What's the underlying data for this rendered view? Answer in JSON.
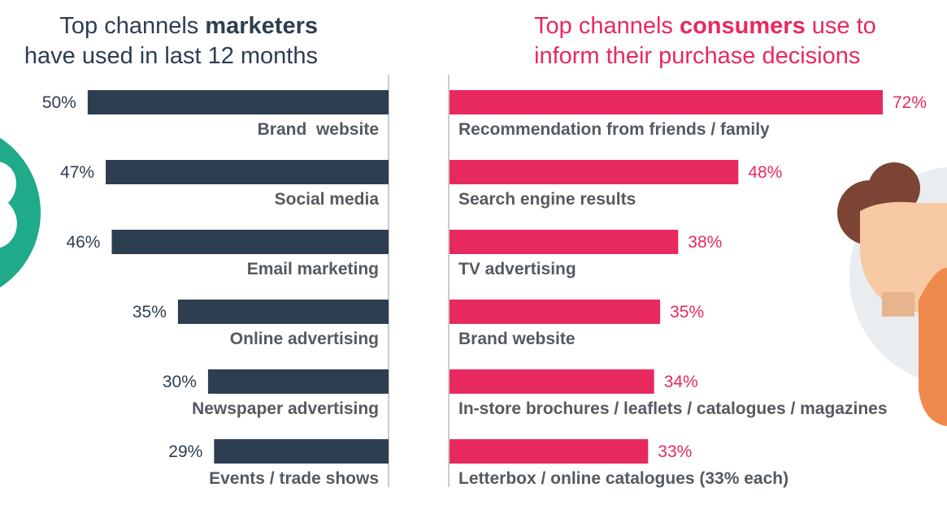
{
  "left_title": {
    "line1_pre": "Top channels ",
    "line1_bold": "marketers",
    "line2": "have used in last 12 months"
  },
  "right_title": {
    "line1_pre": "Top channels ",
    "line1_bold": "consumers",
    "line1_post": " use to",
    "line2": "inform their purchase decisions"
  },
  "colors": {
    "marketers": "#2d3e50",
    "consumers": "#e8295f",
    "text": "#555a60",
    "axis": "#9a9a9a"
  },
  "chart_data": [
    {
      "type": "bar",
      "orientation": "horizontal",
      "title": "Top channels marketers have used in last 12 months",
      "categories": [
        "Brand  website",
        "Social media",
        "Email marketing",
        "Online advertising",
        "Newspaper advertising",
        "Events / trade shows"
      ],
      "values": [
        50,
        47,
        46,
        35,
        30,
        29
      ],
      "value_labels": [
        "50%",
        "47%",
        "46%",
        "35%",
        "30%",
        "29%"
      ],
      "unit": "%",
      "xlim": [
        0,
        72
      ],
      "direction": "right-to-left",
      "grid": false
    },
    {
      "type": "bar",
      "orientation": "horizontal",
      "title": "Top channels consumers use to inform their purchase decisions",
      "categories": [
        "Recommendation from friends / family",
        "Search engine results",
        "TV advertising",
        "Brand website",
        "In-store brochures / leaflets / catalogues / magazines",
        "Letterbox / online catalogues (33% each)"
      ],
      "values": [
        72,
        48,
        38,
        35,
        34,
        33
      ],
      "value_labels": [
        "72%",
        "48%",
        "38%",
        "35%",
        "34%",
        "33%"
      ],
      "unit": "%",
      "xlim": [
        0,
        72
      ],
      "direction": "left-to-right",
      "grid": false
    }
  ]
}
